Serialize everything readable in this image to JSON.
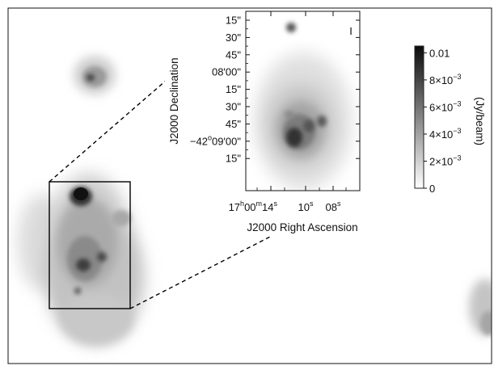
{
  "chart_data": {
    "type": "heatmap",
    "title": "",
    "colormap": "grayscale (white = 0, black = max)",
    "colors": {
      "background": "#ffffff",
      "frame": "#111111",
      "low": "#ffffff",
      "high": "#0b0b0b"
    },
    "inset": {
      "xlabel": "J2000 Right Ascension",
      "ylabel": "J2000 Declination",
      "x_ticks": [
        {
          "prefix": "17",
          "h": "h",
          "mid1": "00",
          "m": "m",
          "main": "14",
          "s": "s"
        },
        {
          "prefix": "",
          "h": "",
          "mid1": "",
          "m": "",
          "main": "10",
          "s": "s"
        },
        {
          "prefix": "",
          "h": "",
          "mid1": "",
          "m": "",
          "main": "08",
          "s": "s"
        }
      ],
      "y_ticks": [
        {
          "prefix": "",
          "sup": "",
          "main": "15\""
        },
        {
          "prefix": "",
          "sup": "",
          "main": "30\""
        },
        {
          "prefix": "",
          "sup": "",
          "main": "45\""
        },
        {
          "prefix": "",
          "sup": "",
          "main": "08'00\""
        },
        {
          "prefix": "",
          "sup": "",
          "main": "15\""
        },
        {
          "prefix": "",
          "sup": "",
          "main": "30\""
        },
        {
          "prefix": "",
          "sup": "",
          "main": "45\""
        },
        {
          "prefix": "−42",
          "sup": "o",
          "main": "09'00\""
        },
        {
          "prefix": "",
          "sup": "",
          "main": "15\""
        }
      ],
      "beam_marker": "I"
    },
    "colorbar": {
      "title": "(Jy/beam)",
      "range": [
        0,
        0.0105
      ],
      "labels": [
        {
          "value": 0.01,
          "mant": "0.01",
          "exp": ""
        },
        {
          "value": 0.008,
          "mant": "8×10",
          "exp": "−3"
        },
        {
          "value": 0.006,
          "mant": "6×10",
          "exp": "−3"
        },
        {
          "value": 0.004,
          "mant": "4×10",
          "exp": "−3"
        },
        {
          "value": 0.002,
          "mant": "2×10",
          "exp": "−3"
        },
        {
          "value": 0,
          "mant": "0",
          "exp": ""
        }
      ]
    }
  }
}
